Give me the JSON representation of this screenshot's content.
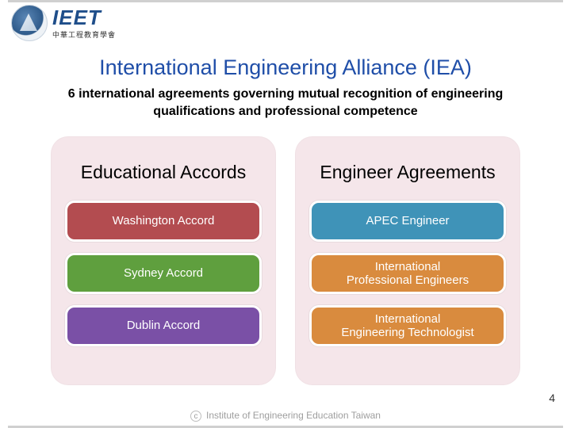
{
  "logo": {
    "acronym": "IEET",
    "subtext": "中華工程教育學會"
  },
  "title": "International Engineering Alliance (IEA)",
  "subtitle": "6 international agreements governing mutual recognition of engineering qualifications and professional competence",
  "panels": {
    "left": {
      "title": "Educational Accords",
      "cards": [
        {
          "label": "Washington Accord",
          "color": "#b34c50"
        },
        {
          "label": "Sydney Accord",
          "color": "#5f9f3e"
        },
        {
          "label": "Dublin Accord",
          "color": "#7a50a6"
        }
      ],
      "background": "#f5e6ea"
    },
    "right": {
      "title": "Engineer Agreements",
      "cards": [
        {
          "label": "APEC Engineer",
          "color": "#3f93b8"
        },
        {
          "label": "International\nProfessional Engineers",
          "color": "#d98b3e"
        },
        {
          "label": "International\nEngineering Technologist",
          "color": "#d98b3e"
        }
      ],
      "background": "#f5e6ea"
    }
  },
  "footer": "Institute of Engineering Education Taiwan",
  "page_number": "4",
  "title_color": "#1f4ea8",
  "card_text_fontsize": 15,
  "panel_title_fontsize": 23,
  "title_fontsize": 27,
  "subtitle_fontsize": 16
}
